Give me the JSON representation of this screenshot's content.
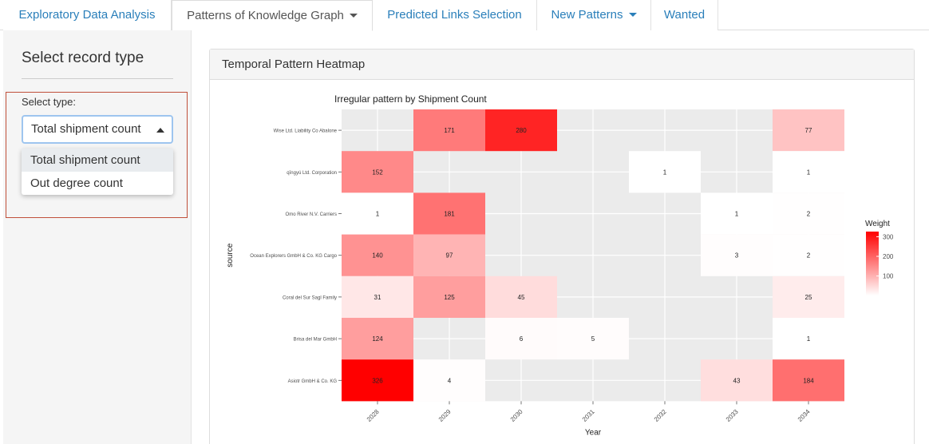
{
  "tabs": [
    {
      "label": "Exploratory Data Analysis",
      "dropdown": false,
      "active": false
    },
    {
      "label": "Patterns of Knowledge Graph",
      "dropdown": true,
      "active": true
    },
    {
      "label": "Predicted Links Selection",
      "dropdown": false,
      "active": false
    },
    {
      "label": "New Patterns",
      "dropdown": true,
      "active": false
    },
    {
      "label": "Wanted",
      "dropdown": false,
      "active": false
    }
  ],
  "sidebar": {
    "title": "Select record type",
    "select_label": "Select type:",
    "selected": "Total shipment count",
    "options": [
      "Total shipment count",
      "Out degree count"
    ]
  },
  "panel": {
    "title": "Temporal Pattern Heatmap"
  },
  "colors": {
    "link": "#2a7fba",
    "low": "#ffffff",
    "high": "#ff0000",
    "grid_bg": "#ebebeb",
    "outline": "#c0503a"
  },
  "chart_data": {
    "type": "heatmap",
    "title": "Irregular pattern by Shipment Count",
    "xlabel": "Year",
    "ylabel": "source",
    "x": [
      "2028",
      "2029",
      "2030",
      "2031",
      "2032",
      "2033",
      "2034"
    ],
    "y": [
      "Wise Ltd. Liability Co Abalone",
      "qīngyú Ltd. Corporation",
      "Omo River  N.V. Carriers",
      "Ocean Explorers GmbH & Co. KG Cargo",
      "Coral del Sur Sagl Family",
      "Brisa del Mar GmbH",
      "Asiotr GmbH & Co. KG"
    ],
    "cells": [
      {
        "x": "2029",
        "y": "Wise Ltd. Liability Co Abalone",
        "value": 171
      },
      {
        "x": "2030",
        "y": "Wise Ltd. Liability Co Abalone",
        "value": 280
      },
      {
        "x": "2034",
        "y": "Wise Ltd. Liability Co Abalone",
        "value": 77
      },
      {
        "x": "2028",
        "y": "qīngyú Ltd. Corporation",
        "value": 152
      },
      {
        "x": "2032",
        "y": "qīngyú Ltd. Corporation",
        "value": 1
      },
      {
        "x": "2034",
        "y": "qīngyú Ltd. Corporation",
        "value": 1
      },
      {
        "x": "2028",
        "y": "Omo River  N.V. Carriers",
        "value": 1
      },
      {
        "x": "2029",
        "y": "Omo River  N.V. Carriers",
        "value": 181
      },
      {
        "x": "2033",
        "y": "Omo River  N.V. Carriers",
        "value": 1
      },
      {
        "x": "2034",
        "y": "Omo River  N.V. Carriers",
        "value": 2
      },
      {
        "x": "2028",
        "y": "Ocean Explorers GmbH & Co. KG Cargo",
        "value": 140
      },
      {
        "x": "2029",
        "y": "Ocean Explorers GmbH & Co. KG Cargo",
        "value": 97
      },
      {
        "x": "2033",
        "y": "Ocean Explorers GmbH & Co. KG Cargo",
        "value": 3
      },
      {
        "x": "2034",
        "y": "Ocean Explorers GmbH & Co. KG Cargo",
        "value": 2
      },
      {
        "x": "2028",
        "y": "Coral del Sur Sagl Family",
        "value": 31
      },
      {
        "x": "2029",
        "y": "Coral del Sur Sagl Family",
        "value": 125
      },
      {
        "x": "2030",
        "y": "Coral del Sur Sagl Family",
        "value": 45
      },
      {
        "x": "2034",
        "y": "Coral del Sur Sagl Family",
        "value": 25
      },
      {
        "x": "2028",
        "y": "Brisa del Mar GmbH",
        "value": 124
      },
      {
        "x": "2030",
        "y": "Brisa del Mar GmbH",
        "value": 6
      },
      {
        "x": "2031",
        "y": "Brisa del Mar GmbH",
        "value": 5
      },
      {
        "x": "2034",
        "y": "Brisa del Mar GmbH",
        "value": 1
      },
      {
        "x": "2028",
        "y": "Asiotr GmbH & Co. KG",
        "value": 326
      },
      {
        "x": "2029",
        "y": "Asiotr GmbH & Co. KG",
        "value": 4
      },
      {
        "x": "2033",
        "y": "Asiotr GmbH & Co. KG",
        "value": 43
      },
      {
        "x": "2034",
        "y": "Asiotr GmbH & Co. KG",
        "value": 184
      }
    ],
    "legend": {
      "title": "Weight",
      "ticks": [
        100,
        200,
        300
      ],
      "placement": "right"
    },
    "value_range": [
      1,
      326
    ],
    "grid": true
  }
}
